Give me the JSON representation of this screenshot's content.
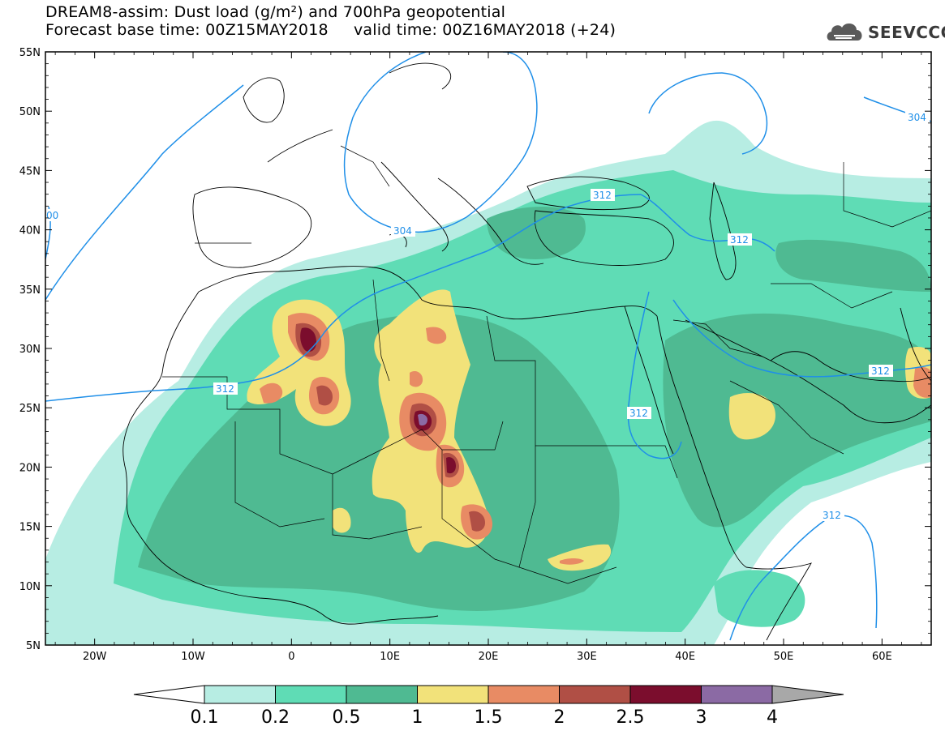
{
  "title": {
    "line1": "DREAM8-assim: Dust load (g/m²) and 700hPa geopotential",
    "line2": "Forecast base time: 00Z15MAY2018     valid time: 00Z16MAY2018 (+24)"
  },
  "logo": {
    "text": "SEEVCCC",
    "icon": "cloud-logo-icon"
  },
  "map": {
    "lon_range": [
      -25,
      65
    ],
    "lat_range": [
      5,
      55
    ],
    "lon_ticks": [
      "20W",
      "10W",
      "0",
      "10E",
      "20E",
      "30E",
      "40E",
      "50E",
      "60E"
    ],
    "lat_ticks": [
      "55N",
      "50N",
      "45N",
      "40N",
      "35N",
      "30N",
      "25N",
      "20N",
      "15N",
      "10N",
      "5N"
    ],
    "contour_labels": [
      "304",
      "312",
      "304",
      "312",
      "312",
      "312",
      "312",
      "312",
      "312",
      "00"
    ],
    "colors": {
      "coast": "#000000",
      "contour": "#1f8fe8"
    }
  },
  "colorbar": {
    "labels": [
      "0.1",
      "0.2",
      "0.5",
      "1",
      "1.5",
      "2",
      "2.5",
      "3",
      "4"
    ],
    "colors": [
      "#ffffff",
      "#b7ede3",
      "#5fdcb5",
      "#4fba92",
      "#f2e27a",
      "#e88b64",
      "#b04f45",
      "#7b0d2d",
      "#8b6aa4",
      "#a8a8a8"
    ]
  }
}
